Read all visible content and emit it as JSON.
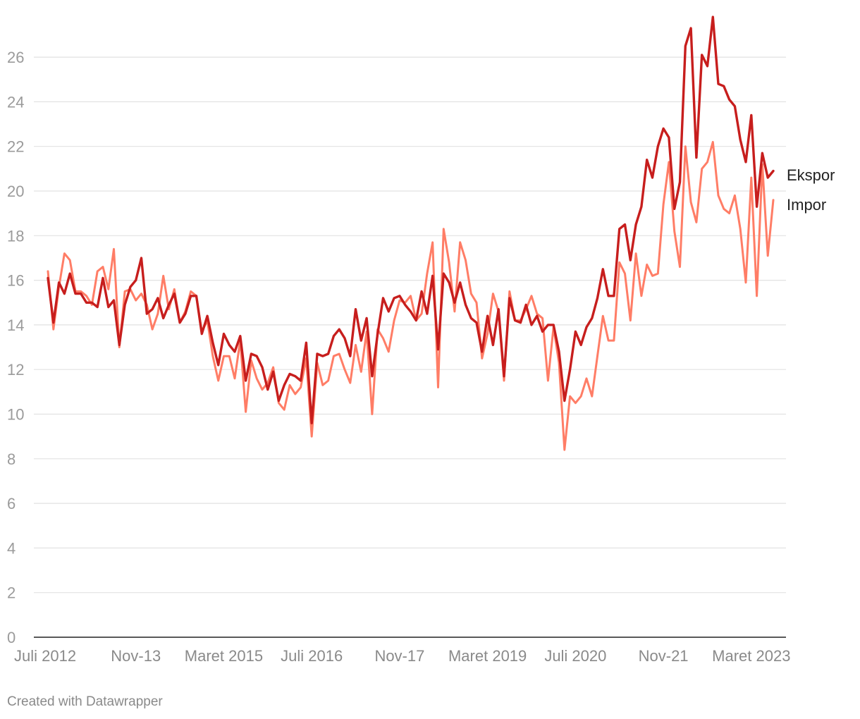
{
  "chart_data": {
    "type": "line",
    "title": "",
    "xlabel": "",
    "ylabel": "",
    "ylim": [
      0,
      28
    ],
    "yticks": [
      0,
      2,
      4,
      6,
      8,
      10,
      12,
      14,
      16,
      18,
      20,
      22,
      24,
      26
    ],
    "grid": true,
    "start_month": "Juli 2012",
    "x_tick_labels": [
      {
        "label": "Juli 2012",
        "index": 0
      },
      {
        "label": "Nov-13",
        "index": 16
      },
      {
        "label": "Maret 2015",
        "index": 32
      },
      {
        "label": "Juli 2016",
        "index": 48
      },
      {
        "label": "Nov-17",
        "index": 64
      },
      {
        "label": "Maret 2019",
        "index": 80
      },
      {
        "label": "Juli 2020",
        "index": 96
      },
      {
        "label": "Nov-21",
        "index": 112
      },
      {
        "label": "Maret 2023",
        "index": 128
      }
    ],
    "series": [
      {
        "name": "Ekspor",
        "color": "#c71e1d",
        "values": [
          16.1,
          14.1,
          15.9,
          15.4,
          16.3,
          15.4,
          15.4,
          15.0,
          15.0,
          14.8,
          16.1,
          14.8,
          15.1,
          13.1,
          14.9,
          15.7,
          16.0,
          17.0,
          14.5,
          14.7,
          15.2,
          14.3,
          14.9,
          15.4,
          14.1,
          14.5,
          15.3,
          15.3,
          13.6,
          14.4,
          13.2,
          12.2,
          13.6,
          13.1,
          12.8,
          13.5,
          11.5,
          12.7,
          12.6,
          12.1,
          11.1,
          11.9,
          10.6,
          11.3,
          11.8,
          11.7,
          11.5,
          13.2,
          9.6,
          12.7,
          12.6,
          12.7,
          13.5,
          13.8,
          13.4,
          12.6,
          14.7,
          13.3,
          14.3,
          11.7,
          13.6,
          15.2,
          14.6,
          15.2,
          15.3,
          14.9,
          14.6,
          14.2,
          15.5,
          14.5,
          16.2,
          12.9,
          16.3,
          15.9,
          15.0,
          15.9,
          14.9,
          14.3,
          14.1,
          12.8,
          14.4,
          13.1,
          14.7,
          11.7,
          15.2,
          14.2,
          14.1,
          14.9,
          14.0,
          14.4,
          13.7,
          14.0,
          14.0,
          12.8,
          10.6,
          12.0,
          13.7,
          13.1,
          13.9,
          14.3,
          15.2,
          16.5,
          15.3,
          15.3,
          18.3,
          18.5,
          16.9,
          18.5,
          19.3,
          21.4,
          20.6,
          22.0,
          22.8,
          22.4,
          19.2,
          20.4,
          26.5,
          27.3,
          21.5,
          26.1,
          25.6,
          27.8,
          24.8,
          24.7,
          24.1,
          23.8,
          22.3,
          21.3,
          23.4,
          19.3,
          21.7,
          20.6,
          20.9
        ]
      },
      {
        "name": "Impor",
        "color": "#ff7d66",
        "values": [
          16.4,
          13.8,
          15.7,
          17.2,
          16.9,
          15.5,
          15.5,
          15.3,
          14.9,
          16.4,
          16.6,
          15.6,
          17.4,
          13.0,
          15.5,
          15.6,
          15.1,
          15.4,
          14.9,
          13.8,
          14.5,
          16.2,
          14.7,
          15.6,
          14.1,
          14.6,
          15.5,
          15.3,
          13.7,
          14.2,
          12.6,
          11.5,
          12.6,
          12.6,
          11.6,
          13.3,
          10.1,
          12.4,
          11.6,
          11.1,
          11.4,
          12.1,
          10.5,
          10.2,
          11.3,
          10.9,
          11.2,
          12.5,
          9.0,
          12.3,
          11.3,
          11.5,
          12.6,
          12.7,
          12.0,
          11.4,
          13.1,
          11.9,
          13.7,
          10.0,
          13.8,
          13.4,
          12.8,
          14.2,
          15.1,
          15.0,
          15.3,
          14.2,
          14.5,
          16.3,
          17.7,
          11.2,
          18.3,
          16.8,
          14.6,
          17.7,
          16.9,
          15.4,
          15.0,
          12.5,
          13.6,
          15.4,
          14.6,
          11.5,
          15.5,
          14.2,
          14.2,
          14.7,
          15.3,
          14.5,
          14.3,
          11.5,
          13.9,
          12.3,
          8.4,
          10.8,
          10.5,
          10.8,
          11.6,
          10.8,
          12.6,
          14.4,
          13.3,
          13.3,
          16.8,
          16.3,
          14.2,
          17.2,
          15.3,
          16.7,
          16.2,
          16.3,
          19.4,
          21.3,
          18.2,
          16.6,
          22.0,
          19.5,
          18.6,
          21.0,
          21.3,
          22.2,
          19.8,
          19.2,
          19.0,
          19.8,
          18.3,
          15.9,
          20.6,
          15.3,
          21.2,
          17.1,
          19.6
        ]
      }
    ]
  },
  "footer": {
    "credit": "Created with Datawrapper"
  }
}
